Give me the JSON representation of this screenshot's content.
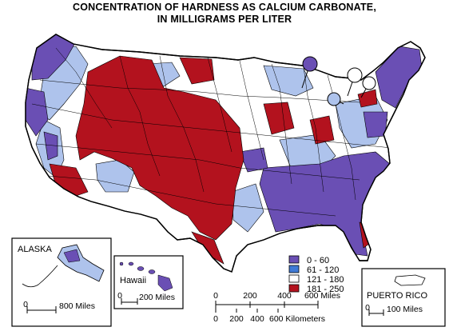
{
  "title": {
    "line1": "CONCENTRATION OF HARDNESS AS CALCIUM CARBONATE,",
    "line2": "IN MILLIGRAMS PER LITER"
  },
  "colors": {
    "dark_purple": "#6a4fb4",
    "light_blue": "#aec3ec",
    "white": "#ffffff",
    "dark_red": "#b3121e",
    "outline": "#000000"
  },
  "legend": [
    {
      "label": "0 - 60",
      "color": "#6a4fb4"
    },
    {
      "label": "61 - 120",
      "color": "#3f7ad6"
    },
    {
      "label": "121 - 180",
      "color": "#ffffff"
    },
    {
      "label": "181 - 250",
      "color": "#b3121e"
    }
  ],
  "insets": {
    "alaska": {
      "label": "ALASKA",
      "scale": "800 Miles",
      "zero": "0"
    },
    "hawaii": {
      "label": "Hawaii",
      "scale": "200 Miles",
      "zero": "0"
    },
    "puerto_rico": {
      "label": "PUERTO RICO",
      "scale": "100 Miles",
      "zero": "0"
    }
  },
  "main_scale": {
    "miles": [
      "0",
      "200",
      "400",
      "600 Miles"
    ],
    "km": [
      "0",
      "200",
      "400",
      "600 Kilometers"
    ]
  }
}
